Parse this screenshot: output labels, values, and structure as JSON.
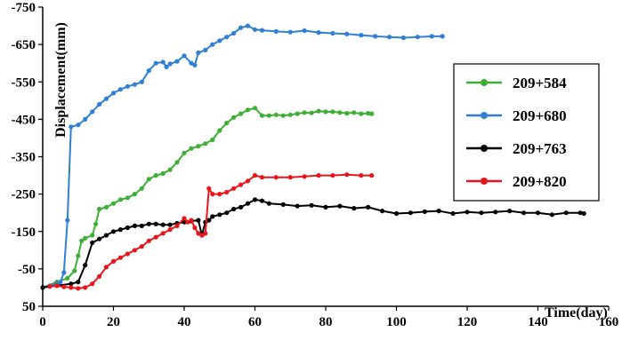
{
  "chart_data": {
    "type": "line",
    "xlabel": "Time(day)",
    "ylabel": "Displacement(mm)",
    "xlim": [
      0,
      160
    ],
    "ylim": [
      50,
      -750
    ],
    "y_reversed": true,
    "x_ticks": [
      0,
      20,
      40,
      60,
      80,
      100,
      120,
      140,
      160
    ],
    "y_ticks": [
      50,
      -50,
      -150,
      -250,
      -350,
      -450,
      -550,
      -650,
      -750
    ],
    "y_tick_labels": [
      "50",
      "-50",
      "-150",
      "-250",
      "-350",
      "-450",
      "-550",
      "-650",
      "-750"
    ],
    "grid": false,
    "legend_position": "right",
    "series": [
      {
        "name": "209+584",
        "color": "#3cb034",
        "x": [
          0,
          4,
          7,
          9,
          10,
          11,
          12,
          14,
          15,
          16,
          18,
          20,
          22,
          24,
          26,
          28,
          30,
          32,
          34,
          36,
          38,
          40,
          42,
          44,
          46,
          48,
          50,
          52,
          54,
          56,
          58,
          60,
          62,
          64,
          66,
          68,
          70,
          72,
          74,
          76,
          78,
          80,
          82,
          84,
          86,
          88,
          90,
          92,
          93
        ],
        "y": [
          0,
          -15,
          -25,
          -45,
          -85,
          -125,
          -132,
          -140,
          -170,
          -210,
          -215,
          -225,
          -235,
          -240,
          -250,
          -265,
          -290,
          -300,
          -305,
          -315,
          -335,
          -360,
          -372,
          -378,
          -385,
          -395,
          -420,
          -440,
          -455,
          -465,
          -475,
          -480,
          -460,
          -460,
          -462,
          -460,
          -462,
          -465,
          -468,
          -467,
          -472,
          -470,
          -470,
          -468,
          -466,
          -468,
          -465,
          -466,
          -465
        ]
      },
      {
        "name": "209+680",
        "color": "#2f7fd4",
        "x": [
          0,
          2,
          4,
          5,
          6,
          7,
          8,
          10,
          12,
          14,
          16,
          18,
          20,
          22,
          24,
          26,
          28,
          30,
          32,
          34,
          35,
          36,
          38,
          40,
          42,
          43,
          44,
          46,
          48,
          50,
          52,
          54,
          56,
          58,
          60,
          62,
          66,
          70,
          74,
          78,
          82,
          86,
          90,
          94,
          98,
          102,
          106,
          110,
          113
        ],
        "y": [
          0,
          -5,
          -10,
          -15,
          -40,
          -180,
          -430,
          -435,
          -450,
          -470,
          -490,
          -505,
          -520,
          -530,
          -538,
          -543,
          -550,
          -580,
          -600,
          -603,
          -590,
          -598,
          -605,
          -620,
          -600,
          -595,
          -628,
          -635,
          -650,
          -660,
          -670,
          -680,
          -695,
          -700,
          -690,
          -688,
          -685,
          -683,
          -687,
          -682,
          -680,
          -678,
          -675,
          -672,
          -670,
          -668,
          -670,
          -672,
          -672
        ]
      },
      {
        "name": "209+763",
        "color": "#000000",
        "x": [
          0,
          4,
          8,
          10,
          12,
          14,
          16,
          18,
          20,
          22,
          24,
          26,
          28,
          30,
          32,
          34,
          36,
          38,
          40,
          42,
          44,
          45,
          46,
          47,
          48,
          50,
          52,
          54,
          56,
          58,
          60,
          62,
          64,
          68,
          72,
          76,
          80,
          84,
          88,
          92,
          96,
          100,
          104,
          108,
          112,
          116,
          120,
          124,
          128,
          132,
          136,
          140,
          144,
          148,
          152,
          153
        ],
        "y": [
          0,
          -5,
          -10,
          -15,
          -60,
          -120,
          -130,
          -140,
          -150,
          -155,
          -160,
          -165,
          -165,
          -170,
          -170,
          -168,
          -168,
          -172,
          -175,
          -178,
          -180,
          -140,
          -175,
          -180,
          -190,
          -195,
          -200,
          -210,
          -215,
          -225,
          -235,
          -232,
          -225,
          -222,
          -218,
          -220,
          -215,
          -218,
          -212,
          -215,
          -205,
          -198,
          -200,
          -203,
          -205,
          -198,
          -202,
          -200,
          -202,
          -205,
          -200,
          -200,
          -195,
          -200,
          -200,
          -198
        ]
      },
      {
        "name": "209+820",
        "color": "#e8161c",
        "x": [
          2,
          4,
          6,
          8,
          10,
          12,
          14,
          16,
          18,
          20,
          22,
          24,
          26,
          28,
          30,
          32,
          34,
          36,
          38,
          40,
          41,
          42,
          43,
          44,
          45,
          46,
          47,
          48,
          50,
          52,
          54,
          56,
          58,
          60,
          62,
          66,
          70,
          74,
          78,
          82,
          86,
          90,
          93
        ],
        "y": [
          -3,
          -5,
          -2,
          0,
          2,
          0,
          -10,
          -30,
          -55,
          -70,
          -80,
          -90,
          -100,
          -110,
          -125,
          -135,
          -145,
          -155,
          -165,
          -185,
          -175,
          -180,
          -160,
          -145,
          -140,
          -145,
          -265,
          -250,
          -250,
          -255,
          -265,
          -275,
          -285,
          -300,
          -295,
          -295,
          -295,
          -297,
          -300,
          -300,
          -302,
          -300,
          -300
        ]
      }
    ]
  }
}
